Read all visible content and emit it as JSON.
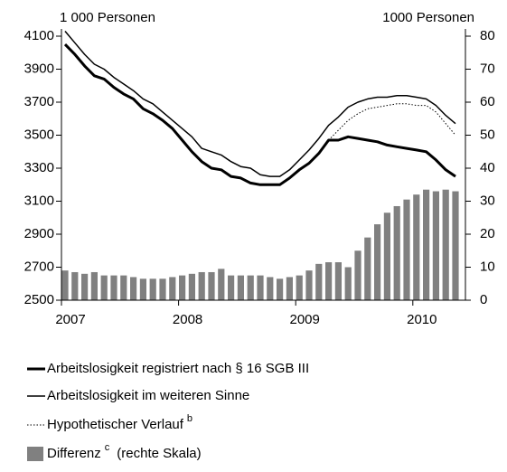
{
  "chart_data": {
    "type": "bar-line",
    "y_label": "1 000 Personen",
    "y2_label": "1000 Personen",
    "categories": [
      "2007",
      null,
      null,
      null,
      null,
      null,
      null,
      null,
      null,
      null,
      null,
      null,
      "2008",
      null,
      null,
      null,
      null,
      null,
      null,
      null,
      null,
      null,
      null,
      null,
      "2009",
      null,
      null,
      null,
      null,
      null,
      null,
      null,
      null,
      null,
      null,
      null,
      "2010",
      null,
      null,
      null,
      null
    ],
    "ylim": [
      2500,
      4100
    ],
    "yticks": [
      2500,
      2700,
      2900,
      3100,
      3300,
      3500,
      3700,
      3900,
      4100
    ],
    "y2lim": [
      0,
      80
    ],
    "y2ticks": [
      0,
      10,
      20,
      30,
      40,
      50,
      60,
      70,
      80
    ],
    "series": [
      {
        "name": "Arbeitslosigkeit registriert nach § 16 SGB III",
        "type": "line",
        "style": "thick",
        "color": "#000000",
        "values": [
          4050,
          3990,
          3920,
          3860,
          3840,
          3790,
          3750,
          3720,
          3660,
          3630,
          3590,
          3540,
          3470,
          3400,
          3340,
          3300,
          3290,
          3250,
          3240,
          3210,
          3200,
          3200,
          3200,
          3240,
          3290,
          3330,
          3390,
          3470,
          3470,
          3490,
          3480,
          3470,
          3460,
          3440,
          3430,
          3420,
          3410,
          3400,
          3350,
          3290,
          3250
        ]
      },
      {
        "name": "Arbeitslosigkeit im weiteren Sinne",
        "type": "line",
        "style": "thin",
        "color": "#000000",
        "values": [
          4130,
          4060,
          3990,
          3930,
          3900,
          3850,
          3810,
          3770,
          3720,
          3690,
          3640,
          3590,
          3540,
          3490,
          3420,
          3400,
          3380,
          3340,
          3310,
          3300,
          3260,
          3250,
          3250,
          3290,
          3350,
          3410,
          3480,
          3560,
          3610,
          3670,
          3700,
          3720,
          3730,
          3730,
          3740,
          3740,
          3730,
          3720,
          3680,
          3620,
          3570
        ]
      },
      {
        "name": "Hypothetischer Verlauf",
        "footnote": "b",
        "type": "line",
        "style": "dotted",
        "color": "#000000",
        "values": [
          null,
          null,
          null,
          null,
          null,
          null,
          null,
          null,
          null,
          null,
          null,
          null,
          null,
          null,
          null,
          null,
          null,
          null,
          null,
          null,
          null,
          null,
          null,
          null,
          null,
          null,
          null,
          3470,
          3530,
          3590,
          3630,
          3660,
          3670,
          3680,
          3690,
          3690,
          3680,
          3680,
          3640,
          3570,
          3500
        ]
      },
      {
        "name": "Differenz",
        "footnote": "c",
        "suffix": "(rechte Skala)",
        "type": "bar",
        "axis": "y2",
        "color": "#808080",
        "values": [
          9,
          8.5,
          8,
          8.5,
          7.5,
          7.5,
          7.5,
          7,
          6.5,
          6.5,
          6.5,
          7,
          7.5,
          8,
          8.5,
          8.5,
          9.5,
          7.5,
          7.5,
          7.5,
          7.5,
          7,
          6.5,
          7,
          7.5,
          9,
          11,
          11.5,
          11.5,
          10,
          15,
          19,
          23,
          26.5,
          28.5,
          30.5,
          32,
          33.5,
          33,
          33.5,
          33
        ]
      }
    ]
  }
}
